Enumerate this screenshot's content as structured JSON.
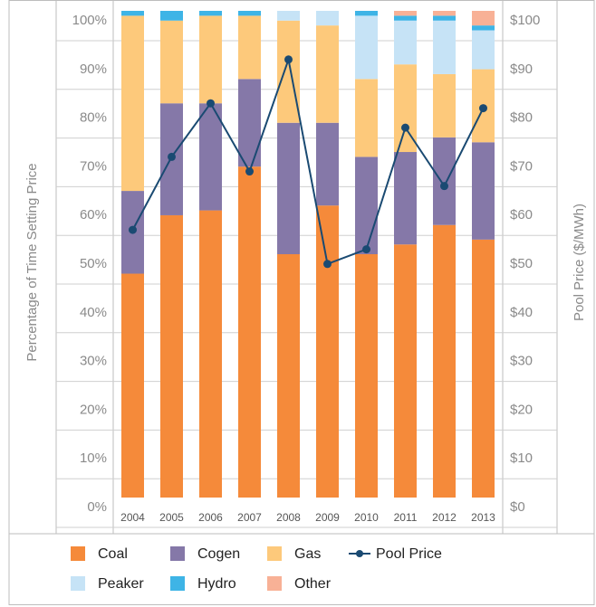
{
  "chart_data": {
    "type": "bar",
    "stacked": true,
    "y_label": "Percentage of Time Setting Price",
    "y2_label": "Pool Price ($/MWh)",
    "categories": [
      "2004",
      "2005",
      "2006",
      "2007",
      "2008",
      "2009",
      "2010",
      "2011",
      "2012",
      "2013"
    ],
    "series": [
      {
        "name": "Coal",
        "color": "#f58a3a",
        "values": [
          46,
          58,
          59,
          68,
          50,
          60,
          50,
          52,
          56,
          53
        ]
      },
      {
        "name": "Cogen",
        "color": "#8578a8",
        "values": [
          17,
          23,
          22,
          18,
          27,
          17,
          20,
          19,
          18,
          20
        ]
      },
      {
        "name": "Gas",
        "color": "#fdc97b",
        "values": [
          36,
          17,
          18,
          13,
          21,
          20,
          16,
          18,
          13,
          15
        ]
      },
      {
        "name": "Peaker",
        "color": "#c6e3f6",
        "values": [
          0,
          0,
          0,
          0,
          2,
          3,
          13,
          9,
          11,
          8
        ]
      },
      {
        "name": "Hydro",
        "color": "#3eb4e6",
        "values": [
          1,
          2,
          1,
          1,
          0,
          0,
          1,
          1,
          1,
          1
        ]
      },
      {
        "name": "Other",
        "color": "#f8b196",
        "values": [
          0,
          0,
          0,
          0,
          0,
          0,
          0,
          1,
          1,
          3
        ]
      },
      {
        "name": "Pool Price",
        "type": "line",
        "axis": "y2",
        "color": "#1a4a72",
        "values": [
          55,
          70,
          81,
          67,
          90,
          48,
          51,
          76,
          64,
          80
        ]
      }
    ],
    "ylim": [
      0,
      100
    ],
    "yticks": [
      {
        "value": 0,
        "label": "0%"
      },
      {
        "value": 10,
        "label": "10%"
      },
      {
        "value": 20,
        "label": "20%"
      },
      {
        "value": 30,
        "label": "30%"
      },
      {
        "value": 40,
        "label": "40%"
      },
      {
        "value": 50,
        "label": "50%"
      },
      {
        "value": 60,
        "label": "60%"
      },
      {
        "value": 70,
        "label": "70%"
      },
      {
        "value": 80,
        "label": "80%"
      },
      {
        "value": 90,
        "label": "90%"
      },
      {
        "value": 100,
        "label": "100%"
      }
    ],
    "y2lim": [
      0,
      100
    ],
    "y2ticks": [
      {
        "value": 0,
        "label": "$0"
      },
      {
        "value": 10,
        "label": "$10"
      },
      {
        "value": 20,
        "label": "$20"
      },
      {
        "value": 30,
        "label": "$30"
      },
      {
        "value": 40,
        "label": "$40"
      },
      {
        "value": 50,
        "label": "$50"
      },
      {
        "value": 60,
        "label": "$60"
      },
      {
        "value": 70,
        "label": "$70"
      },
      {
        "value": 80,
        "label": "$80"
      },
      {
        "value": 90,
        "label": "$90"
      },
      {
        "value": 100,
        "label": "$100"
      }
    ],
    "grid": true
  }
}
